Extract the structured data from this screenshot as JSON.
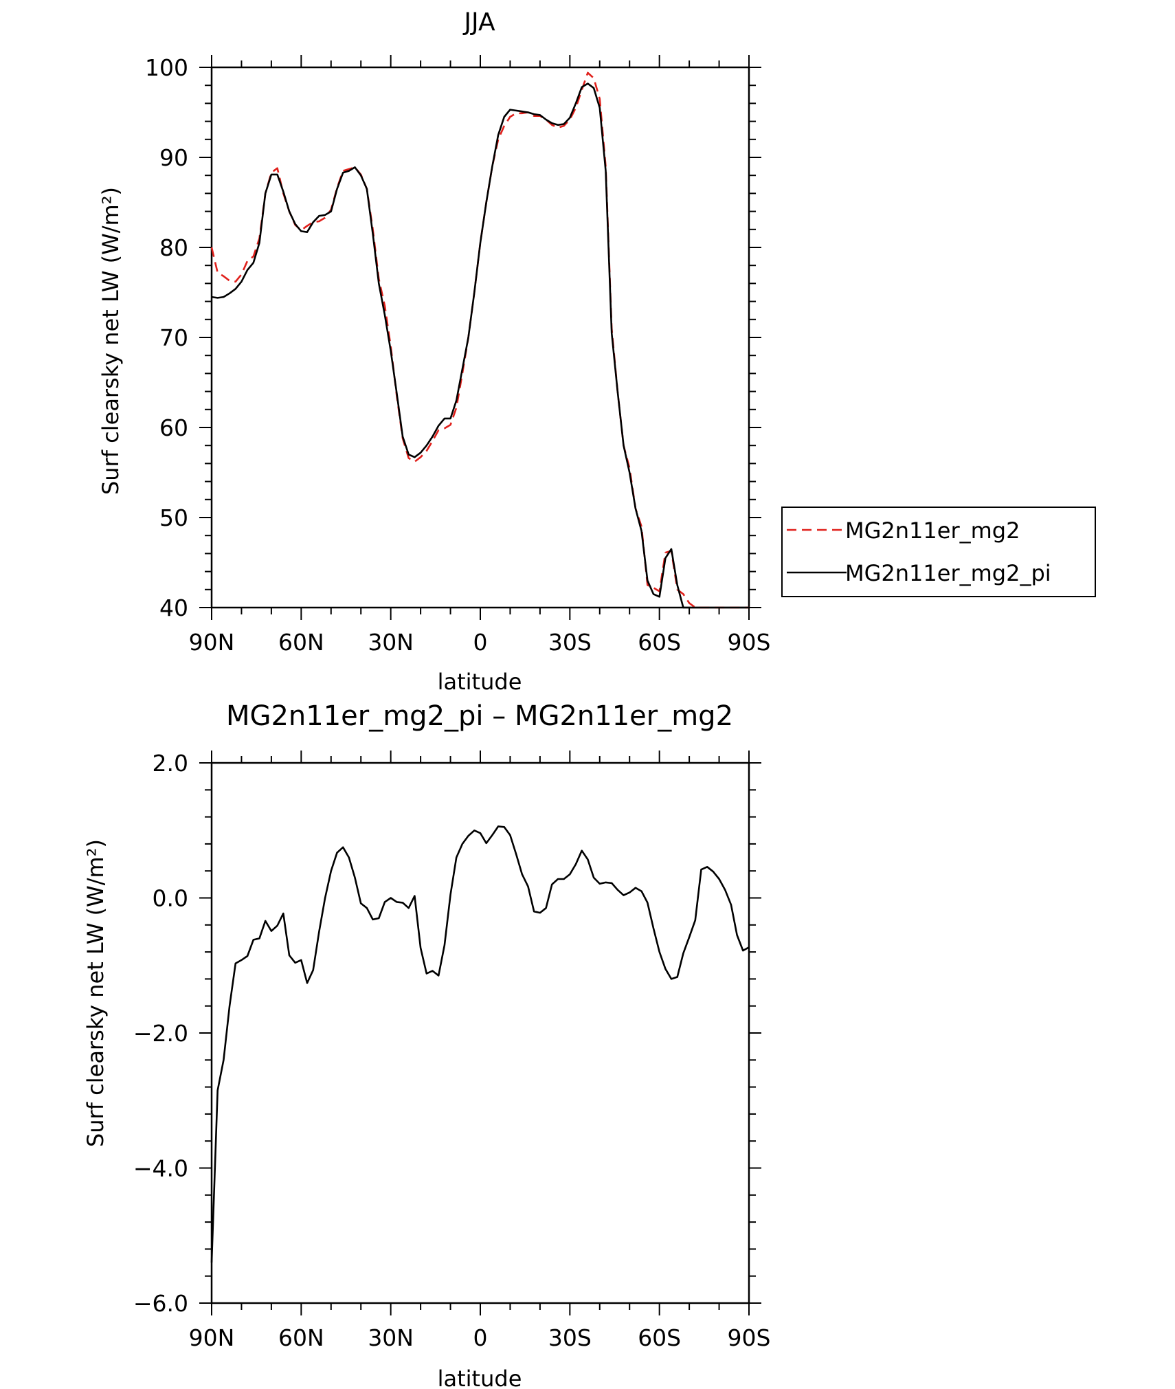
{
  "chart_data": [
    {
      "type": "line",
      "title": "JJA",
      "xlabel": "latitude",
      "ylabel": "Surf clearsky net LW (W/m²)",
      "xlim": [
        90,
        -90
      ],
      "ylim": [
        40,
        100
      ],
      "xticks": [
        90,
        60,
        30,
        0,
        -30,
        -60,
        -90
      ],
      "xtick_labels": [
        "90N",
        "60N",
        "30N",
        "0",
        "30S",
        "60S",
        "90S"
      ],
      "yticks": [
        40,
        50,
        60,
        70,
        80,
        90,
        100
      ],
      "ytick_labels": [
        "40",
        "50",
        "60",
        "70",
        "80",
        "90",
        "100"
      ],
      "legend_position": "right",
      "series": [
        {
          "name": "MG2n11er_mg2",
          "color": "#e0201b",
          "dash": "dashed",
          "x": [
            90,
            88,
            86,
            84,
            82,
            80,
            78,
            76,
            74,
            72,
            70,
            68,
            66,
            64,
            62,
            60,
            58,
            56,
            54,
            52,
            50,
            48,
            46,
            44,
            42,
            40,
            38,
            36,
            34,
            32,
            30,
            28,
            26,
            24,
            22,
            20,
            18,
            16,
            14,
            12,
            10,
            8,
            6,
            4,
            2,
            0,
            -2,
            -4,
            -6,
            -8,
            -10,
            -12,
            -14,
            -16,
            -18,
            -20,
            -22,
            -24,
            -26,
            -28,
            -30,
            -32,
            -34,
            -36,
            -38,
            -40,
            -42,
            -44,
            -46,
            -48,
            -50,
            -52,
            -54,
            -56,
            -58,
            -60,
            -62,
            -64,
            -66,
            -68,
            -70,
            -72,
            -74,
            -76,
            -78,
            -80,
            -82,
            -84,
            -86,
            -88,
            -90
          ],
          "values": [
            80.0,
            77.2,
            76.8,
            76.3,
            76.2,
            77.0,
            78.5,
            79.0,
            81.0,
            86.0,
            88.3,
            88.8,
            86.0,
            84.0,
            82.5,
            81.9,
            82.4,
            82.8,
            82.9,
            83.3,
            84.2,
            86.6,
            88.5,
            88.7,
            88.9,
            88.1,
            86.5,
            82.0,
            76.5,
            73.5,
            69.0,
            63.5,
            58.8,
            56.6,
            56.2,
            56.7,
            57.4,
            58.5,
            59.7,
            59.9,
            60.3,
            62.2,
            66.0,
            70.0,
            75.0,
            80.5,
            85.0,
            89.0,
            92.0,
            93.5,
            94.5,
            94.9,
            94.9,
            95.0,
            94.6,
            94.6,
            94.2,
            93.6,
            93.3,
            93.5,
            94.2,
            95.5,
            97.5,
            99.4,
            98.8,
            96.5,
            89.0,
            71.0,
            64.0,
            58.0,
            55.5,
            51.0,
            49.0,
            42.5,
            42.2,
            41.8,
            46.1,
            46.3,
            42.0,
            41.5,
            40.5,
            40.0,
            40.0,
            40.0,
            40.0,
            40.0,
            40.0,
            40.0,
            40.0,
            40.0,
            40.0
          ]
        },
        {
          "name": "MG2n11er_mg2_pi",
          "color": "#000000",
          "dash": "solid",
          "x": [
            90,
            88,
            86,
            84,
            82,
            80,
            78,
            76,
            74,
            72,
            70,
            68,
            66,
            64,
            62,
            60,
            58,
            56,
            54,
            52,
            50,
            48,
            46,
            44,
            42,
            40,
            38,
            36,
            34,
            32,
            30,
            28,
            26,
            24,
            22,
            20,
            18,
            16,
            14,
            12,
            10,
            8,
            6,
            4,
            2,
            0,
            -2,
            -4,
            -6,
            -8,
            -10,
            -12,
            -14,
            -16,
            -18,
            -20,
            -22,
            -24,
            -26,
            -28,
            -30,
            -32,
            -34,
            -36,
            -38,
            -40,
            -42,
            -44,
            -46,
            -48,
            -50,
            -52,
            -54,
            -56,
            -58,
            -60,
            -62,
            -64,
            -66,
            -68,
            -70,
            -72,
            -74,
            -76,
            -78,
            -80,
            -82,
            -84,
            -86,
            -88,
            -90
          ],
          "values": [
            74.5,
            74.4,
            74.5,
            74.9,
            75.4,
            76.2,
            77.5,
            78.3,
            80.5,
            86.0,
            88.1,
            88.1,
            86.2,
            84.0,
            82.6,
            81.8,
            81.7,
            82.8,
            83.5,
            83.6,
            84.0,
            86.5,
            88.3,
            88.5,
            88.9,
            88.0,
            86.5,
            81.5,
            76.0,
            72.5,
            68.5,
            63.8,
            59.0,
            57.0,
            56.7,
            57.2,
            58.0,
            59.0,
            60.2,
            61.0,
            61.0,
            63.0,
            66.5,
            70.0,
            75.0,
            80.5,
            85.0,
            89.0,
            92.5,
            94.5,
            95.3,
            95.2,
            95.1,
            95.0,
            94.8,
            94.7,
            94.2,
            93.8,
            93.6,
            93.7,
            94.4,
            96.0,
            97.8,
            98.2,
            97.7,
            95.5,
            88.5,
            70.5,
            64.0,
            58.0,
            55.0,
            51.0,
            48.5,
            43.0,
            41.5,
            41.2,
            45.5,
            46.5,
            42.5,
            40.0,
            40.0,
            40.0,
            40.0,
            40.0,
            40.0,
            40.0,
            40.0,
            40.0,
            40.0,
            40.0,
            40.0
          ]
        }
      ]
    },
    {
      "type": "line",
      "title": "MG2n11er_mg2_pi – MG2n11er_mg2",
      "xlabel": "latitude",
      "ylabel": "Surf clearsky net LW (W/m²)",
      "xlim": [
        90,
        -90
      ],
      "ylim": [
        -6,
        2
      ],
      "xticks": [
        90,
        60,
        30,
        0,
        -30,
        -60,
        -90
      ],
      "xtick_labels": [
        "90N",
        "60N",
        "30N",
        "0",
        "30S",
        "60S",
        "90S"
      ],
      "yticks": [
        -6,
        -4,
        -2,
        0,
        2
      ],
      "ytick_labels": [
        "−6.0",
        "−4.0",
        "−2.0",
        "0.0",
        "2.0"
      ],
      "series": [
        {
          "color": "#000000",
          "x": [
            90,
            88,
            86,
            84,
            82,
            80,
            78,
            76,
            74,
            72,
            70,
            68,
            66,
            64,
            62,
            60,
            58,
            56,
            54,
            52,
            50,
            48,
            46,
            44,
            42,
            40,
            38,
            36,
            34,
            32,
            30,
            28,
            26,
            24,
            22,
            20,
            18,
            16,
            14,
            12,
            10,
            8,
            6,
            4,
            2,
            0,
            -2,
            -4,
            -6,
            -8,
            -10,
            -12,
            -14,
            -16,
            -18,
            -20,
            -22,
            -24,
            -26,
            -28,
            -30,
            -32,
            -34,
            -36,
            -38,
            -40,
            -42,
            -44,
            -46,
            -48,
            -50,
            -52,
            -54,
            -56,
            -58,
            -60,
            -62,
            -64,
            -66,
            -68,
            -70,
            -72,
            -74,
            -76,
            -78,
            -80,
            -82,
            -84,
            -86,
            -88,
            -90
          ],
          "values": [
            -5.4,
            -2.85,
            -2.4,
            -1.6,
            -0.97,
            -0.92,
            -0.86,
            -0.62,
            -0.6,
            -0.34,
            -0.49,
            -0.41,
            -0.23,
            -0.85,
            -0.96,
            -0.92,
            -1.26,
            -1.07,
            -0.5,
            0.0,
            0.4,
            0.67,
            0.75,
            0.6,
            0.3,
            -0.08,
            -0.15,
            -0.32,
            -0.3,
            -0.06,
            0.0,
            -0.06,
            -0.07,
            -0.15,
            0.03,
            -0.74,
            -1.12,
            -1.08,
            -1.15,
            -0.7,
            0.05,
            0.6,
            0.8,
            0.92,
            1.0,
            0.96,
            0.81,
            0.93,
            1.06,
            1.05,
            0.93,
            0.65,
            0.35,
            0.17,
            -0.2,
            -0.22,
            -0.15,
            0.2,
            0.28,
            0.28,
            0.35,
            0.5,
            0.7,
            0.57,
            0.3,
            0.21,
            0.23,
            0.22,
            0.12,
            0.04,
            0.08,
            0.15,
            0.1,
            -0.07,
            -0.45,
            -0.8,
            -1.05,
            -1.2,
            -1.17,
            -0.82,
            -0.58,
            -0.33,
            0.42,
            0.46,
            0.39,
            0.28,
            0.12,
            -0.1,
            -0.55,
            -0.78,
            -0.73
          ]
        }
      ]
    }
  ]
}
